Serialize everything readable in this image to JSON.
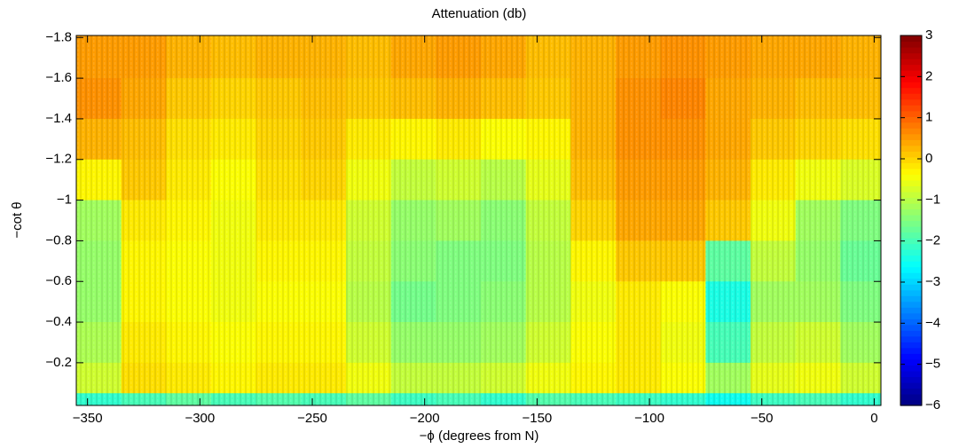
{
  "chart_data": {
    "type": "heatmap",
    "title": "Attenuation (db)",
    "xlabel": "−ϕ (degrees from N)",
    "ylabel": "−cot θ",
    "colormap": "jet",
    "xlim": [
      -355,
      3
    ],
    "ylim": [
      -1.81,
      0.01
    ],
    "y_direction": "reverse",
    "xticks": [
      {
        "value": -350,
        "label": "−350"
      },
      {
        "value": -300,
        "label": "−300"
      },
      {
        "value": -250,
        "label": "−250"
      },
      {
        "value": -200,
        "label": "−200"
      },
      {
        "value": -150,
        "label": "−150"
      },
      {
        "value": -100,
        "label": "−100"
      },
      {
        "value": -50,
        "label": "−50"
      },
      0
    ],
    "yticks": [
      {
        "value": -1.8,
        "label": "−1.8"
      },
      {
        "value": -1.6,
        "label": "−1.6"
      },
      {
        "value": -1.4,
        "label": "−1.4"
      },
      {
        "value": -1.2,
        "label": "−1.2"
      },
      {
        "value": -1,
        "label": "−1"
      },
      {
        "value": -0.8,
        "label": "−0.8"
      },
      {
        "value": -0.6,
        "label": "−0.6"
      },
      {
        "value": -0.4,
        "label": "−0.4"
      },
      {
        "value": -0.2,
        "label": "−0.2"
      }
    ],
    "clim": [
      -6,
      3
    ],
    "cticks": [
      3,
      2,
      1,
      0,
      {
        "value": -1,
        "label": "−1"
      },
      {
        "value": -2,
        "label": "−2"
      },
      {
        "value": -3,
        "label": "−3"
      },
      {
        "value": -4,
        "label": "−4"
      },
      {
        "value": -5,
        "label": "−5"
      },
      {
        "value": -6,
        "label": "−6"
      }
    ],
    "xbins": [
      -355,
      -335,
      -315,
      -295,
      -275,
      -255,
      -235,
      -215,
      -195,
      -175,
      -155,
      -135,
      -115,
      -95,
      -75,
      -55,
      -35,
      -15,
      3
    ],
    "ybins": [
      -1.81,
      -1.6,
      -1.4,
      -1.2,
      -1.0,
      -0.8,
      -0.6,
      -0.4,
      -0.2,
      -0.05,
      0.01
    ],
    "z": [
      [
        0.5,
        0.5,
        0.3,
        0.2,
        0.3,
        0.3,
        0.2,
        0.4,
        0.5,
        0.4,
        0.2,
        0.3,
        0.5,
        0.6,
        0.5,
        0.4,
        0.4,
        0.3
      ],
      [
        0.6,
        0.4,
        0.1,
        0.0,
        0.1,
        0.2,
        0.1,
        0.2,
        0.3,
        0.2,
        0.1,
        0.3,
        0.6,
        0.7,
        0.4,
        0.3,
        0.2,
        0.2
      ],
      [
        0.3,
        0.2,
        -0.1,
        -0.2,
        0.0,
        0.1,
        -0.2,
        -0.3,
        -0.2,
        -0.4,
        -0.3,
        0.3,
        0.6,
        0.6,
        0.4,
        0.1,
        0.0,
        -0.1
      ],
      [
        -0.3,
        0.1,
        -0.2,
        -0.4,
        -0.1,
        0.0,
        -0.5,
        -0.9,
        -0.8,
        -1.0,
        -0.6,
        0.2,
        0.5,
        0.5,
        0.3,
        -0.2,
        -0.5,
        -0.7
      ],
      [
        -1.2,
        -0.2,
        -0.3,
        -0.5,
        -0.2,
        -0.2,
        -0.8,
        -1.3,
        -1.2,
        -1.4,
        -0.9,
        0.0,
        0.4,
        0.4,
        0.1,
        -0.5,
        -1.2,
        -1.5
      ],
      [
        -1.3,
        -0.3,
        -0.4,
        -0.5,
        -0.3,
        -0.3,
        -0.9,
        -1.4,
        -1.5,
        -1.5,
        -1.0,
        -0.3,
        0.1,
        0.1,
        -1.8,
        -0.9,
        -1.3,
        -1.7
      ],
      [
        -1.3,
        -0.3,
        -0.4,
        -0.5,
        -0.4,
        -0.4,
        -1.0,
        -1.6,
        -1.5,
        -1.4,
        -1.0,
        -0.5,
        -0.2,
        -0.4,
        -2.4,
        -1.2,
        -1.2,
        -1.5
      ],
      [
        -1.1,
        -0.2,
        -0.3,
        -0.4,
        -0.3,
        -0.3,
        -0.8,
        -1.3,
        -1.3,
        -1.2,
        -0.8,
        -0.4,
        -0.2,
        -0.5,
        -2.0,
        -0.9,
        -0.8,
        -1.2
      ],
      [
        -0.8,
        -0.1,
        -0.2,
        -0.3,
        -0.2,
        -0.2,
        -0.5,
        -0.9,
        -0.9,
        -0.8,
        -0.5,
        -0.3,
        -0.2,
        -0.4,
        -1.2,
        -0.6,
        -0.5,
        -0.8
      ],
      [
        -2.2,
        -2.0,
        -1.8,
        -2.0,
        -1.9,
        -2.0,
        -1.8,
        -2.1,
        -2.0,
        -2.2,
        -1.9,
        -2.0,
        -2.1,
        -2.2,
        -2.5,
        -2.1,
        -2.0,
        -2.2
      ]
    ]
  }
}
